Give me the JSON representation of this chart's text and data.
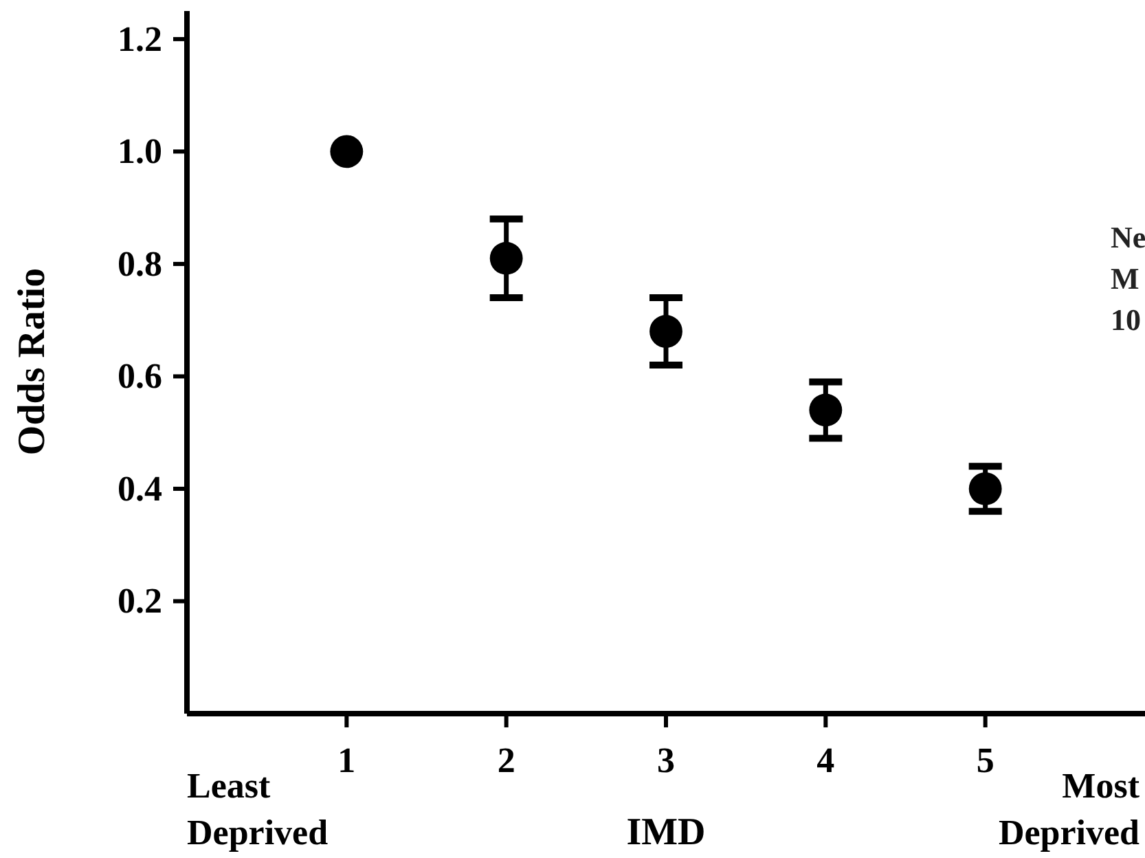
{
  "chart_data": {
    "type": "scatter",
    "xlabel": "IMD",
    "ylabel": "Odds Ratio",
    "x": [
      1,
      2,
      3,
      4,
      5
    ],
    "values": [
      1.0,
      0.81,
      0.68,
      0.54,
      0.4
    ],
    "errors": [
      null,
      [
        0.74,
        0.88
      ],
      [
        0.62,
        0.74
      ],
      [
        0.49,
        0.59
      ],
      [
        0.36,
        0.44
      ]
    ],
    "color": "#000000",
    "marker": "circle",
    "xlim": [
      0,
      6
    ],
    "xticks": [
      1,
      2,
      3,
      4,
      5
    ],
    "ylim": [
      0,
      1.25
    ],
    "yticks": [
      {
        "value": 0.2,
        "label": "0.2"
      },
      {
        "value": 0.4,
        "label": "0.4"
      },
      {
        "value": 0.6,
        "label": "0.6"
      },
      {
        "value": 0.8,
        "label": "0.8"
      },
      {
        "value": 1.0,
        "label": "1.0"
      },
      {
        "value": 1.2,
        "label": "1.2"
      }
    ],
    "grid": false,
    "annotations": [
      "Least Deprived",
      "Most Deprived",
      "Ne M 10"
    ]
  }
}
